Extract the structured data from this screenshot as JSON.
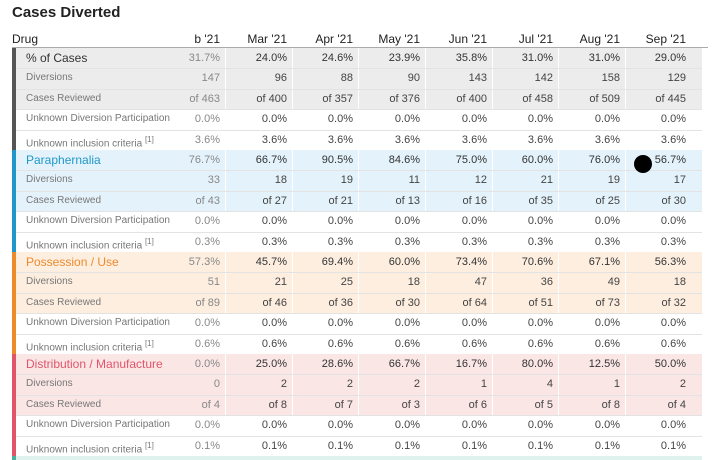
{
  "title": "Cases Diverted",
  "header": {
    "drug": "Drug",
    "months": [
      "b '21",
      "Mar '21",
      "Apr '21",
      "May '21",
      "Jun '21",
      "Jul '21",
      "Aug '21",
      "Sep '21"
    ]
  },
  "groups": [
    {
      "name": "% of Cases",
      "theme": "gray",
      "color": "#555555",
      "rows": [
        {
          "label": "% of Cases",
          "values": [
            "31.7%",
            "24.0%",
            "24.6%",
            "23.9%",
            "35.8%",
            "31.0%",
            "31.0%",
            "29.0%"
          ]
        },
        {
          "label": "Diversions",
          "values": [
            "147",
            "96",
            "88",
            "90",
            "143",
            "142",
            "158",
            "129"
          ]
        },
        {
          "label": "Cases Reviewed",
          "values": [
            "of 463",
            "of 400",
            "of 357",
            "of 376",
            "of 400",
            "of 458",
            "of 509",
            "of 445"
          ]
        },
        {
          "label": "Unknown Diversion Participation",
          "values": [
            "0.0%",
            "0.0%",
            "0.0%",
            "0.0%",
            "0.0%",
            "0.0%",
            "0.0%",
            "0.0%"
          ]
        },
        {
          "label": "Unknown inclusion criteria",
          "sup": "[1]",
          "values": [
            "3.6%",
            "3.6%",
            "3.6%",
            "3.6%",
            "3.6%",
            "3.6%",
            "3.6%",
            "3.6%"
          ]
        }
      ]
    },
    {
      "name": "Paraphernalia",
      "theme": "blue",
      "color": "#1f97c9",
      "rows": [
        {
          "label": "Paraphernalia",
          "values": [
            "76.7%",
            "66.7%",
            "90.5%",
            "84.6%",
            "75.0%",
            "60.0%",
            "76.0%",
            "56.7%"
          ]
        },
        {
          "label": "Diversions",
          "values": [
            "33",
            "18",
            "19",
            "11",
            "12",
            "21",
            "19",
            "17"
          ]
        },
        {
          "label": "Cases Reviewed",
          "values": [
            "of 43",
            "of 27",
            "of 21",
            "of 13",
            "of 16",
            "of 35",
            "of 25",
            "of 30"
          ]
        },
        {
          "label": "Unknown Diversion Participation",
          "values": [
            "0.0%",
            "0.0%",
            "0.0%",
            "0.0%",
            "0.0%",
            "0.0%",
            "0.0%",
            "0.0%"
          ]
        },
        {
          "label": "Unknown inclusion criteria",
          "sup": "[1]",
          "values": [
            "0.3%",
            "0.3%",
            "0.3%",
            "0.3%",
            "0.3%",
            "0.3%",
            "0.3%",
            "0.3%"
          ]
        }
      ]
    },
    {
      "name": "Possession / Use",
      "theme": "orange",
      "color": "#ef8a2b",
      "rows": [
        {
          "label": "Possession / Use",
          "values": [
            "57.3%",
            "45.7%",
            "69.4%",
            "60.0%",
            "73.4%",
            "70.6%",
            "67.1%",
            "56.3%"
          ]
        },
        {
          "label": "Diversions",
          "values": [
            "51",
            "21",
            "25",
            "18",
            "47",
            "36",
            "49",
            "18"
          ]
        },
        {
          "label": "Cases Reviewed",
          "values": [
            "of 89",
            "of 46",
            "of 36",
            "of 30",
            "of 64",
            "of 51",
            "of 73",
            "of 32"
          ]
        },
        {
          "label": "Unknown Diversion Participation",
          "values": [
            "0.0%",
            "0.0%",
            "0.0%",
            "0.0%",
            "0.0%",
            "0.0%",
            "0.0%",
            "0.0%"
          ]
        },
        {
          "label": "Unknown inclusion criteria",
          "sup": "[1]",
          "values": [
            "0.6%",
            "0.6%",
            "0.6%",
            "0.6%",
            "0.6%",
            "0.6%",
            "0.6%",
            "0.6%"
          ]
        }
      ]
    },
    {
      "name": "Distribution / Manufacture",
      "theme": "pink",
      "color": "#e0556a",
      "rows": [
        {
          "label": "Distribution / Manufacture",
          "values": [
            "0.0%",
            "25.0%",
            "28.6%",
            "66.7%",
            "16.7%",
            "80.0%",
            "12.5%",
            "50.0%"
          ]
        },
        {
          "label": "Diversions",
          "values": [
            "0",
            "2",
            "2",
            "2",
            "1",
            "4",
            "1",
            "2"
          ]
        },
        {
          "label": "Cases Reviewed",
          "values": [
            "of 4",
            "of 8",
            "of 7",
            "of 3",
            "of 6",
            "of 5",
            "of 8",
            "of 4"
          ]
        },
        {
          "label": "Unknown Diversion Participation",
          "values": [
            "0.0%",
            "0.0%",
            "0.0%",
            "0.0%",
            "0.0%",
            "0.0%",
            "0.0%",
            "0.0%"
          ]
        },
        {
          "label": "Unknown inclusion criteria",
          "sup": "[1]",
          "values": [
            "0.1%",
            "0.1%",
            "0.1%",
            "0.1%",
            "0.1%",
            "0.1%",
            "0.1%",
            "0.1%"
          ]
        }
      ]
    }
  ]
}
